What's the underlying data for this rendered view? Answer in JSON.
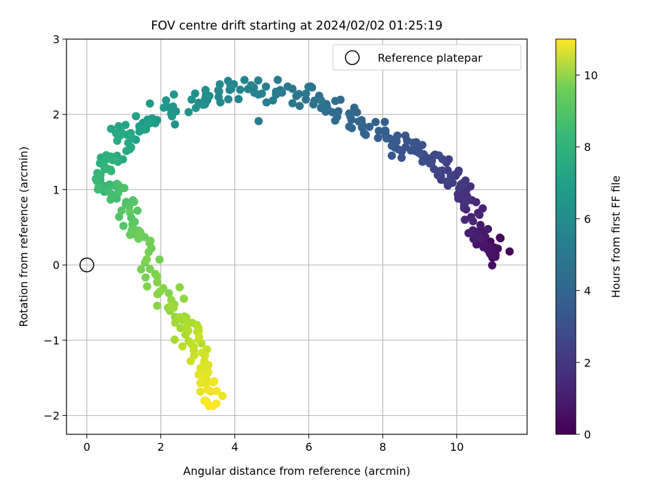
{
  "chart_data": {
    "type": "scatter",
    "title": "FOV centre drift starting at 2024/02/02 01:25:19",
    "xlabel": "Angular distance from reference (arcmin)",
    "ylabel": "Rotation from reference (arcmin)",
    "xlim": [
      -0.55,
      11.9
    ],
    "ylim": [
      -2.25,
      3.0
    ],
    "xticks": [
      0,
      2,
      4,
      6,
      8,
      10
    ],
    "yticks": [
      -2,
      -1,
      0,
      1,
      2,
      3
    ],
    "xtick_labels": [
      "0",
      "2",
      "4",
      "6",
      "8",
      "10"
    ],
    "ytick_labels": [
      "−2",
      "−1",
      "0",
      "1",
      "2",
      "3"
    ],
    "grid": true,
    "legend": {
      "placement": "top-right",
      "entries": [
        "Reference platepar"
      ]
    },
    "reference": {
      "label": "Reference platepar",
      "x": 0,
      "y": 0
    },
    "colorbar": {
      "label": "Hours from first FF file",
      "colormap": "viridis",
      "range": [
        0,
        11
      ],
      "ticks": [
        0,
        2,
        4,
        6,
        8,
        10
      ],
      "tick_labels": [
        "0",
        "2",
        "4",
        "6",
        "8",
        "10"
      ]
    },
    "path_anchors": [
      {
        "t": 0.0,
        "x": 11.0,
        "y": 0.25
      },
      {
        "t": 0.5,
        "x": 10.9,
        "y": 0.15
      },
      {
        "t": 1.0,
        "x": 10.5,
        "y": 0.55
      },
      {
        "t": 1.5,
        "x": 10.3,
        "y": 0.95
      },
      {
        "t": 2.0,
        "x": 9.8,
        "y": 1.2
      },
      {
        "t": 2.5,
        "x": 9.2,
        "y": 1.45
      },
      {
        "t": 3.0,
        "x": 8.5,
        "y": 1.6
      },
      {
        "t": 3.5,
        "x": 7.5,
        "y": 1.85
      },
      {
        "t": 4.0,
        "x": 6.5,
        "y": 2.15
      },
      {
        "t": 4.5,
        "x": 5.4,
        "y": 2.3
      },
      {
        "t": 5.0,
        "x": 4.1,
        "y": 2.35
      },
      {
        "t": 5.5,
        "x": 3.0,
        "y": 2.15
      },
      {
        "t": 6.0,
        "x": 1.7,
        "y": 1.95
      },
      {
        "t": 6.5,
        "x": 1.0,
        "y": 1.7
      },
      {
        "t": 7.0,
        "x": 0.5,
        "y": 1.35
      },
      {
        "t": 7.5,
        "x": 0.6,
        "y": 1.05
      },
      {
        "t": 8.0,
        "x": 1.1,
        "y": 0.75
      },
      {
        "t": 8.5,
        "x": 1.5,
        "y": 0.35
      },
      {
        "t": 9.0,
        "x": 2.1,
        "y": -0.4
      },
      {
        "t": 9.5,
        "x": 2.6,
        "y": -0.8
      },
      {
        "t": 10.0,
        "x": 3.0,
        "y": -1.1
      },
      {
        "t": 10.5,
        "x": 3.2,
        "y": -1.5
      },
      {
        "t": 11.0,
        "x": 3.3,
        "y": -1.85
      }
    ],
    "point_count": 420,
    "scatter_spread": {
      "x": 0.28,
      "y": 0.13
    }
  }
}
